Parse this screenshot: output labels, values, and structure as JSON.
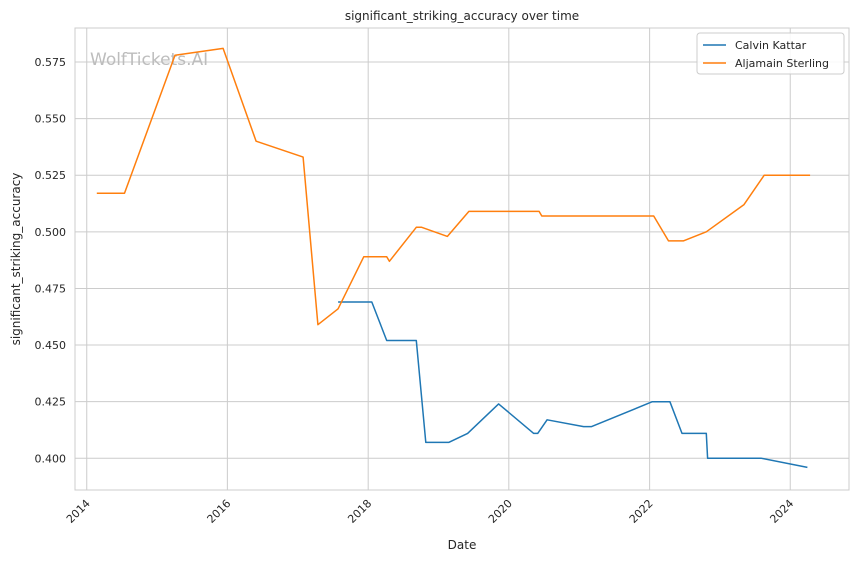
{
  "chart_data": {
    "type": "line",
    "title": "significant_striking_accuracy over time",
    "xlabel": "Date",
    "ylabel": "significant_striking_accuracy",
    "watermark": "WolfTickets.AI",
    "xlim": [
      "2013-11-01",
      "2024-11-01"
    ],
    "ylim": [
      0.386,
      0.59
    ],
    "x_ticks": [
      "2014-01-01",
      "2016-01-01",
      "2018-01-01",
      "2020-01-01",
      "2022-01-01",
      "2024-01-01"
    ],
    "x_tick_labels": [
      "2014",
      "2016",
      "2018",
      "2020",
      "2022",
      "2024"
    ],
    "y_ticks": [
      0.4,
      0.425,
      0.45,
      0.475,
      0.5,
      0.525,
      0.55,
      0.575
    ],
    "y_tick_labels": [
      "0.400",
      "0.425",
      "0.450",
      "0.475",
      "0.500",
      "0.525",
      "0.550",
      "0.575"
    ],
    "grid": true,
    "legend_position": "top-right",
    "series": [
      {
        "name": "Calvin Kattar",
        "color": "#1f77b4",
        "points": [
          [
            "2017-07-29",
            0.469
          ],
          [
            "2018-01-20",
            0.469
          ],
          [
            "2018-04-07",
            0.452
          ],
          [
            "2018-09-08",
            0.452
          ],
          [
            "2018-10-27",
            0.407
          ],
          [
            "2019-02-23",
            0.407
          ],
          [
            "2019-06-01",
            0.411
          ],
          [
            "2019-11-09",
            0.424
          ],
          [
            "2020-05-09",
            0.411
          ],
          [
            "2020-05-30",
            0.411
          ],
          [
            "2020-07-18",
            0.417
          ],
          [
            "2021-01-23",
            0.414
          ],
          [
            "2021-03-06",
            0.414
          ],
          [
            "2022-01-15",
            0.425
          ],
          [
            "2022-04-16",
            0.425
          ],
          [
            "2022-06-18",
            0.411
          ],
          [
            "2022-10-22",
            0.411
          ],
          [
            "2022-10-29",
            0.4
          ],
          [
            "2023-08-05",
            0.4
          ],
          [
            "2024-03-30",
            0.396
          ]
        ]
      },
      {
        "name": "Aljamain Sterling",
        "color": "#ff7f0e",
        "points": [
          [
            "2014-02-22",
            0.517
          ],
          [
            "2014-07-16",
            0.517
          ],
          [
            "2015-04-04",
            0.578
          ],
          [
            "2015-12-10",
            0.581
          ],
          [
            "2016-05-29",
            0.54
          ],
          [
            "2017-01-28",
            0.533
          ],
          [
            "2017-04-15",
            0.459
          ],
          [
            "2017-07-29",
            0.466
          ],
          [
            "2017-12-09",
            0.489
          ],
          [
            "2018-04-07",
            0.489
          ],
          [
            "2018-04-21",
            0.487
          ],
          [
            "2018-09-08",
            0.502
          ],
          [
            "2018-10-06",
            0.502
          ],
          [
            "2019-02-16",
            0.498
          ],
          [
            "2019-06-08",
            0.509
          ],
          [
            "2020-06-06",
            0.509
          ],
          [
            "2020-06-20",
            0.507
          ],
          [
            "2021-03-06",
            0.507
          ],
          [
            "2021-04-10",
            0.507
          ],
          [
            "2022-01-22",
            0.507
          ],
          [
            "2022-04-09",
            0.496
          ],
          [
            "2022-06-25",
            0.496
          ],
          [
            "2022-10-22",
            0.5
          ],
          [
            "2023-05-06",
            0.512
          ],
          [
            "2023-08-19",
            0.525
          ],
          [
            "2024-04-13",
            0.525
          ]
        ]
      }
    ]
  }
}
